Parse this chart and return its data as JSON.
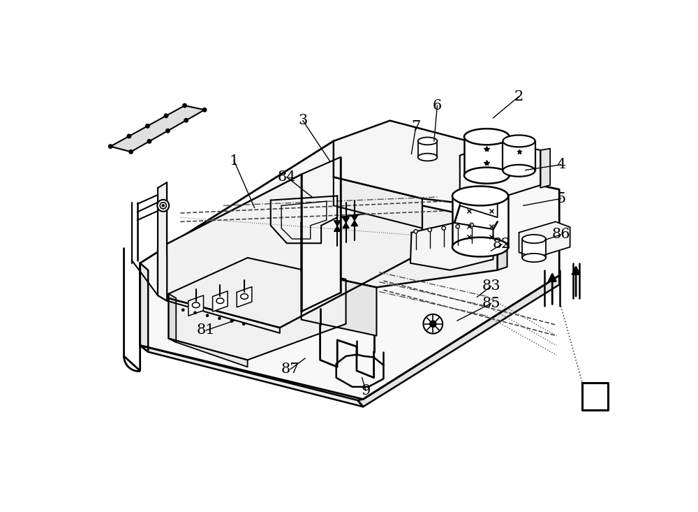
{
  "bg_color": "#ffffff",
  "fig_width": 10.0,
  "fig_height": 7.33,
  "dpi": 100,
  "labels": [
    [
      "1",
      270,
      185
    ],
    [
      "2",
      800,
      65
    ],
    [
      "3",
      398,
      110
    ],
    [
      "4",
      878,
      192
    ],
    [
      "5",
      878,
      255
    ],
    [
      "6",
      648,
      82
    ],
    [
      "7",
      608,
      122
    ],
    [
      "81",
      218,
      500
    ],
    [
      "82",
      768,
      340
    ],
    [
      "83",
      748,
      418
    ],
    [
      "84",
      368,
      215
    ],
    [
      "85",
      748,
      450
    ],
    [
      "86",
      878,
      322
    ],
    [
      "87",
      375,
      572
    ],
    [
      "9",
      515,
      612
    ]
  ],
  "leader_ends": [
    [
      "1",
      308,
      272
    ],
    [
      "2",
      752,
      105
    ],
    [
      "3",
      448,
      185
    ],
    [
      "4",
      812,
      202
    ],
    [
      "5",
      808,
      268
    ],
    [
      "6",
      642,
      148
    ],
    [
      "7",
      600,
      172
    ],
    [
      "81",
      270,
      482
    ],
    [
      "82",
      748,
      352
    ],
    [
      "83",
      722,
      438
    ],
    [
      "84",
      415,
      252
    ],
    [
      "85",
      685,
      482
    ],
    [
      "86",
      848,
      332
    ],
    [
      "87",
      402,
      552
    ],
    [
      "9",
      508,
      588
    ]
  ]
}
